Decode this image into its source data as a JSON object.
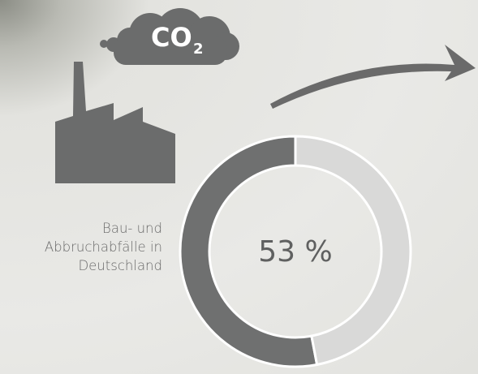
{
  "chart_data": {
    "type": "donut",
    "categories": [
      "Bau- und Abbruchabfälle in Deutschland",
      null
    ],
    "values": [
      53,
      47
    ],
    "value_labels": [
      "53 %",
      null
    ],
    "colors": [
      "#6f7070",
      "#d9d9d8"
    ]
  },
  "icon": {
    "co2_text": "CO",
    "co2_subscript": "2"
  }
}
